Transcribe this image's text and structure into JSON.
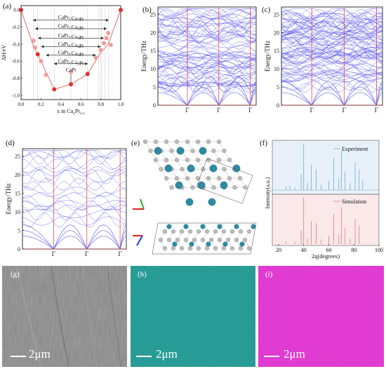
{
  "labels": {
    "a": "(a)",
    "b": "(b)",
    "c": "(c)",
    "d": "(d)",
    "e": "(e)",
    "f": "(f)",
    "g": "(g)",
    "h": "(h)",
    "i": "(i)"
  },
  "panel_a": {
    "ylabel": "ΔH/eV",
    "xlabel": "x in Ca",
    "xlabel_sub1": "x",
    "xlabel_mid": "Pt",
    "xlabel_sub2": "1-x",
    "xticks": [
      "0.0",
      "0.2",
      "0.4",
      "0.6",
      "0.8",
      "1.0"
    ],
    "yticks": [
      "0.0",
      "-0.2",
      "-0.4",
      "-0.6",
      "-0.8",
      "-1.0"
    ],
    "phases": [
      {
        "a": "CaPt",
        "b": "7",
        "c": " Ca",
        "d": "7",
        "e": "Pt"
      },
      {
        "a": "CaPt",
        "b": "5",
        "c": " Ca",
        "d": "5",
        "e": "Pt"
      },
      {
        "a": "CaPt",
        "b": "3",
        "c": " Ca",
        "d": "3",
        "e": "Pt"
      },
      {
        "a": "CaPt",
        "b": "4",
        "c": " Ca",
        "d": "4",
        "e": "Pt"
      },
      {
        "a": "CaPt",
        "b": "3",
        "c": " Ca",
        "d": "3",
        "e": "Pt"
      },
      {
        "a": "CaPt",
        "b": "2",
        "c": " Ca",
        "d": "2",
        "e": "Pt"
      }
    ],
    "capt_label": "CaPt"
  },
  "chart_data": [
    {
      "type": "scatter",
      "xlabel": "x in CaxPt1-x",
      "ylabel": "ΔH/eV",
      "xlim": [
        0,
        1
      ],
      "ylim": [
        -1.05,
        0.05
      ],
      "hull": {
        "x": [
          0.0,
          0.125,
          0.167,
          0.333,
          0.5,
          0.667,
          0.8,
          0.875,
          1.0
        ],
        "y": [
          0.0,
          -0.43,
          -0.52,
          -0.93,
          -0.87,
          -0.75,
          -0.5,
          -0.4,
          0.0
        ]
      },
      "points": [
        {
          "x": 0.0,
          "y": 0.0
        },
        {
          "x": 1.0,
          "y": 0.0
        },
        {
          "x": 0.125,
          "y": -0.36
        },
        {
          "x": 0.14,
          "y": -0.44
        },
        {
          "x": 0.167,
          "y": -0.52
        },
        {
          "x": 0.2,
          "y": -0.6
        },
        {
          "x": 0.25,
          "y": -0.76
        },
        {
          "x": 0.333,
          "y": -0.93
        },
        {
          "x": 0.5,
          "y": -0.87
        },
        {
          "x": 0.5,
          "y": -0.73
        },
        {
          "x": 0.667,
          "y": -0.75
        },
        {
          "x": 0.75,
          "y": -0.56
        },
        {
          "x": 0.8,
          "y": -0.47
        },
        {
          "x": 0.833,
          "y": -0.39
        },
        {
          "x": 0.857,
          "y": -0.33
        },
        {
          "x": 0.875,
          "y": -0.27
        },
        {
          "x": 0.9,
          "y": -0.41
        }
      ]
    },
    {
      "type": "line",
      "ylabel": "Energy/THz",
      "yticks": [
        "0",
        "5",
        "10",
        "15",
        "20",
        "25"
      ],
      "xticks": [
        "Γ",
        "Γ",
        "Γ"
      ]
    },
    {
      "type": "line",
      "ylabel": "Energy/THz",
      "yticks": [
        "0",
        "5",
        "10",
        "15",
        "20",
        "25"
      ],
      "xticks": [
        "Γ",
        "Γ",
        "Γ"
      ]
    },
    {
      "type": "line",
      "ylabel": "Energy/THz",
      "yticks": [
        "0",
        "5",
        "10",
        "15",
        "20",
        "25"
      ],
      "xticks": [
        "Γ",
        "Γ",
        "Γ"
      ]
    },
    {
      "type": "line",
      "xlabel": "2q(degrees)",
      "ylabel": "Intensity(a.u.)",
      "xticks": [
        "20",
        "40",
        "60",
        "80",
        "100"
      ],
      "xlim": [
        15,
        100
      ],
      "series": [
        {
          "name": "Experiment",
          "peaks": [
            [
              26,
              0.08
            ],
            [
              29,
              0.1
            ],
            [
              33,
              0.06
            ],
            [
              38,
              0.35
            ],
            [
              40,
              1.0
            ],
            [
              43,
              0.15
            ],
            [
              46,
              0.55
            ],
            [
              50,
              0.45
            ],
            [
              54,
              0.12
            ],
            [
              60,
              0.2
            ],
            [
              64,
              0.7
            ],
            [
              68,
              0.25
            ],
            [
              70,
              0.85
            ],
            [
              73,
              0.4
            ],
            [
              77,
              0.15
            ],
            [
              81,
              0.6
            ],
            [
              84,
              0.45
            ],
            [
              87,
              0.2
            ]
          ]
        },
        {
          "name": "Simulation",
          "peaks": [
            [
              26,
              0.06
            ],
            [
              33,
              0.05
            ],
            [
              38,
              0.3
            ],
            [
              40,
              1.0
            ],
            [
              43,
              0.12
            ],
            [
              46,
              0.5
            ],
            [
              50,
              0.45
            ],
            [
              54,
              0.1
            ],
            [
              60,
              0.18
            ],
            [
              64,
              0.65
            ],
            [
              68,
              0.2
            ],
            [
              70,
              0.8
            ],
            [
              73,
              0.35
            ],
            [
              77,
              0.12
            ],
            [
              81,
              0.55
            ],
            [
              84,
              0.4
            ]
          ]
        }
      ]
    }
  ],
  "micro": {
    "g": "2μm",
    "h": "2μm",
    "i": "2μm"
  },
  "colors": {
    "bands": "#5b5bef",
    "hsym": "#e03030",
    "exp": "#6fa8d8",
    "sim": "#e07a7a",
    "eds_ca": "#1e9f96",
    "eds_pt": "#e23ad2",
    "sem": "#8a8a8a"
  }
}
